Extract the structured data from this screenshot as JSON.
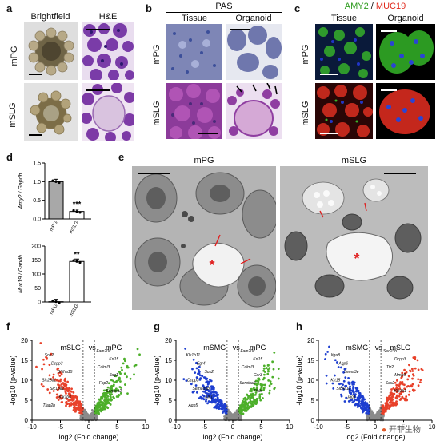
{
  "panels": {
    "a": {
      "label": "a",
      "cols": [
        "Brightfield",
        "H&E"
      ],
      "rows": [
        "mPG",
        "mSLG"
      ]
    },
    "b": {
      "label": "b",
      "title": "PAS",
      "cols": [
        "Tissue",
        "Organoid"
      ],
      "rows": [
        "mPG",
        "mSLG"
      ]
    },
    "c": {
      "label": "c",
      "title_left": "AMY2",
      "title_sep": " / ",
      "title_right": "MUC19",
      "cols": [
        "Tissue",
        "Organoid"
      ],
      "rows": [
        "mPG",
        "mSLG"
      ]
    },
    "d": {
      "label": "d"
    },
    "e": {
      "label": "e",
      "cols": [
        "mPG",
        "mSLG"
      ]
    },
    "f": {
      "label": "f"
    },
    "g": {
      "label": "g"
    },
    "h": {
      "label": "h"
    }
  },
  "colors": {
    "green": "#4caf2a",
    "red": "#e8412a",
    "blue": "#1e3fd0",
    "gray": "#8a8a8a"
  },
  "chart_data": [
    {
      "type": "bar",
      "panel": "d-top",
      "categories": [
        "mPG",
        "mSLG"
      ],
      "values": [
        1.0,
        0.2
      ],
      "ylabel": "Amy2 / Gapdh",
      "ylim": [
        0,
        1.5
      ],
      "yticks": [
        "0.0",
        "0.5",
        "1.0",
        "1.5"
      ],
      "significance": [
        "",
        "***"
      ]
    },
    {
      "type": "bar",
      "panel": "d-bottom",
      "categories": [
        "mPG",
        "mSLG"
      ],
      "values": [
        1,
        145
      ],
      "ylabel": "Muc19 / Gapdh",
      "ylim": [
        0,
        200
      ],
      "yticks": [
        "0",
        "50",
        "100",
        "150",
        "200"
      ],
      "significance": [
        "",
        "**"
      ]
    },
    {
      "type": "scatter",
      "panel": "f",
      "title_left": "mSLG",
      "vs": "vs",
      "title_right": "mPG",
      "xlabel": "log2 (Fold change)",
      "ylabel": "-log10 (p-value)",
      "xlim": [
        -10,
        10
      ],
      "ylim": [
        0,
        20
      ],
      "xticks": [
        "-10",
        "-5",
        "0",
        "5",
        "10"
      ],
      "yticks": [
        "0",
        "5",
        "10",
        "15",
        "20"
      ],
      "genes": [
        "Sox2",
        "Dcpp3",
        "Bhlha15",
        "Slc28a1",
        "Slc18a1",
        "Klk1b4",
        "Tfap2b",
        "Fam20c",
        "Krt15",
        "Calml3",
        "Jag1",
        "Fbp2",
        "Serpina2"
      ]
    },
    {
      "type": "scatter",
      "panel": "g",
      "title_left": "mSMG",
      "vs": "vs",
      "title_right": "mPG",
      "xlabel": "log2 (Fold change)",
      "ylabel": "-log10 (p-value)",
      "xlim": [
        -10,
        10
      ],
      "ylim": [
        0,
        20
      ],
      "xticks": [
        "-10",
        "-5",
        "0",
        "5",
        "10"
      ],
      "yticks": [
        "0",
        "5",
        "10",
        "15",
        "20"
      ],
      "genes": [
        "Klk1b11",
        "Egr4",
        "Sox2",
        "Dcpp3",
        "Semad3b",
        "Klk1",
        "Aqp5",
        "Fam20c",
        "Krt15",
        "Calml3",
        "Car3",
        "Serpina2",
        "Pkib"
      ]
    },
    {
      "type": "scatter",
      "panel": "h",
      "title_left": "mSMG",
      "vs": "vs",
      "title_right": "mSLG",
      "xlabel": "log2 (Fold change)",
      "ylabel": "-log10 (p-value)",
      "xlim": [
        -10,
        10
      ],
      "ylim": [
        0,
        20
      ],
      "xticks": [
        "-10",
        "-5",
        "0",
        "5",
        "10"
      ],
      "yticks": [
        "0",
        "5",
        "10",
        "15",
        "20"
      ],
      "genes": [
        "Itga8",
        "Aqp6",
        "Sema3e",
        "Krt15",
        "Slc4a11",
        "Jag1",
        "Sec23b",
        "Dcpp3",
        "Tfr2",
        "Mmp9",
        "Sox2",
        "Klk1b1"
      ]
    }
  ],
  "watermark": "开菲生物"
}
